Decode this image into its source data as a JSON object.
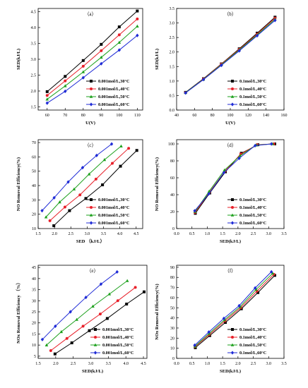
{
  "chart_data": [
    {
      "type": "line",
      "panel_label": "（a）",
      "xlabel": "U(V)",
      "ylabel": "SED(kJ/L)",
      "xlim": [
        55,
        113
      ],
      "ylim": [
        1.4,
        4.6
      ],
      "xticks": [
        "60",
        "70",
        "80",
        "90",
        "100",
        "110"
      ],
      "yticks": [
        "1.5",
        "2.0",
        "2.5",
        "3.0",
        "3.5",
        "4.0",
        "4.5"
      ],
      "legend": "bottom-right",
      "x": [
        60,
        70,
        80,
        90,
        100,
        110
      ],
      "series": [
        {
          "name": "0.001mol/L,30°C",
          "color": "#000000",
          "marker": "square",
          "values": [
            1.98,
            2.46,
            2.96,
            3.47,
            4.02,
            4.52
          ]
        },
        {
          "name": "0.001mol/L,40°C",
          "color": "#e8202a",
          "marker": "circle",
          "values": [
            1.86,
            2.32,
            2.78,
            3.27,
            3.77,
            4.27
          ]
        },
        {
          "name": "0.001mol/L,50°C",
          "color": "#1ca01c",
          "marker": "triangle",
          "values": [
            1.74,
            2.16,
            2.6,
            3.06,
            3.53,
            4.04
          ]
        },
        {
          "name": "0.001mol/L,60°C",
          "color": "#1f2bd6",
          "marker": "diamond",
          "values": [
            1.62,
            1.99,
            2.42,
            2.86,
            3.29,
            3.75
          ]
        }
      ]
    },
    {
      "type": "line",
      "panel_label": "（b）",
      "xlabel": "U(V)",
      "ylabel": "SED(kJ/L)",
      "xlim": [
        40,
        160
      ],
      "ylim": [
        0,
        3.5
      ],
      "xticks": [
        "40",
        "60",
        "80",
        "100",
        "120",
        "140",
        "160"
      ],
      "yticks": [
        "0.0",
        "0.5",
        "1.0",
        "1.5",
        "2.0",
        "2.5",
        "3.0",
        "3.5"
      ],
      "legend": "bottom-right",
      "x": [
        50,
        70,
        90,
        110,
        130,
        150
      ],
      "series": [
        {
          "name": "0.1mol/L,30°C",
          "color": "#000000",
          "marker": "square",
          "values": [
            0.61,
            1.08,
            1.59,
            2.11,
            2.65,
            3.2
          ]
        },
        {
          "name": "0.1mol/L,40°C",
          "color": "#e8202a",
          "marker": "circle",
          "values": [
            0.6,
            1.07,
            1.58,
            2.09,
            2.62,
            3.17
          ]
        },
        {
          "name": "0.1mol/L,50°C",
          "color": "#1ca01c",
          "marker": "triangle",
          "values": [
            0.6,
            1.06,
            1.56,
            2.07,
            2.59,
            3.13
          ]
        },
        {
          "name": "0.1mol/L,60°C",
          "color": "#1f2bd6",
          "marker": "diamond",
          "values": [
            0.59,
            1.05,
            1.54,
            2.04,
            2.56,
            3.09
          ]
        }
      ]
    },
    {
      "type": "line",
      "panel_label": "（c）",
      "xlabel": "SED （kJ/L）",
      "ylabel": "NO Removal Efficiency(%)",
      "xlim": [
        1.5,
        4.7
      ],
      "ylim": [
        10,
        72
      ],
      "xticks": [
        "1.5",
        "2.0",
        "2.5",
        "3.0",
        "3.5",
        "4.0",
        "4.5"
      ],
      "yticks": [
        "10",
        "20",
        "30",
        "40",
        "50",
        "60",
        "70"
      ],
      "legend": "bottom-right",
      "series": [
        {
          "name": "0.001mol/L,30°C",
          "color": "#000000",
          "marker": "square",
          "x": [
            1.98,
            2.46,
            2.96,
            3.47,
            4.02,
            4.52
          ],
          "values": [
            12,
            22.5,
            31,
            40.5,
            53.5,
            64.5
          ]
        },
        {
          "name": "0.001mol/L,40°C",
          "color": "#e8202a",
          "marker": "circle",
          "x": [
            1.86,
            2.32,
            2.78,
            3.27,
            3.77,
            4.27
          ],
          "values": [
            15.5,
            25,
            33.5,
            44.5,
            55.5,
            66
          ]
        },
        {
          "name": "0.001mol/L,50°C",
          "color": "#1ca01c",
          "marker": "triangle",
          "x": [
            1.74,
            2.16,
            2.6,
            3.06,
            3.53,
            4.04
          ],
          "values": [
            18,
            28.5,
            37.5,
            48,
            58,
            67.5
          ]
        },
        {
          "name": "0.001mol/L,60°C",
          "color": "#1f2bd6",
          "marker": "diamond",
          "x": [
            1.62,
            1.99,
            2.42,
            2.86,
            3.29,
            3.75
          ],
          "values": [
            22.5,
            31.5,
            42.5,
            52.5,
            61,
            69
          ]
        }
      ]
    },
    {
      "type": "line",
      "panel_label": "（d）",
      "xlabel": "SED(kJ/L)",
      "ylabel": "NO Removal Efficiency(%)",
      "xlim": [
        0,
        3.5
      ],
      "ylim": [
        0,
        105
      ],
      "xticks": [
        "0.0",
        "0.5",
        "1.0",
        "1.5",
        "2.0",
        "2.5",
        "3.0",
        "3.5"
      ],
      "yticks": [
        "0",
        "20",
        "40",
        "60",
        "80",
        "100"
      ],
      "legend": "bottom-right",
      "series": [
        {
          "name": "0.1mol/L,30°C",
          "color": "#000000",
          "marker": "square",
          "x": [
            0.61,
            1.08,
            1.59,
            2.11,
            2.65,
            3.2
          ],
          "values": [
            18,
            42,
            67,
            89,
            99,
            100
          ]
        },
        {
          "name": "0.1mol/L,40°C",
          "color": "#e8202a",
          "marker": "circle",
          "x": [
            0.6,
            1.07,
            1.58,
            2.09,
            2.62,
            3.17
          ],
          "values": [
            19,
            43,
            68,
            88,
            99,
            100
          ]
        },
        {
          "name": "0.1mol/L,50°C",
          "color": "#1ca01c",
          "marker": "triangle",
          "x": [
            0.6,
            1.06,
            1.56,
            2.07,
            2.59,
            3.13
          ],
          "values": [
            20,
            44,
            69,
            86,
            98.5,
            100
          ]
        },
        {
          "name": "0.1mol/L,60°C",
          "color": "#1f2bd6",
          "marker": "diamond",
          "x": [
            0.59,
            1.05,
            1.54,
            2.04,
            2.56,
            3.09
          ],
          "values": [
            21,
            41,
            66,
            83,
            98,
            100
          ]
        }
      ]
    },
    {
      "type": "line",
      "panel_label": "（e）",
      "xlabel": "SED(kJ/L)",
      "ylabel": "NOx Removal Efficiency （%）",
      "xlim": [
        1.5,
        4.6
      ],
      "ylim": [
        4,
        46
      ],
      "xticks": [
        "1.5",
        "2.0",
        "2.5",
        "3.0",
        "3.5",
        "4.0",
        "4.5"
      ],
      "yticks": [
        "5",
        "10",
        "15",
        "20",
        "25",
        "30",
        "35",
        "40",
        "45"
      ],
      "legend": "bottom-right",
      "series": [
        {
          "name": "0.001mol/L,30°C",
          "color": "#000000",
          "marker": "square",
          "x": [
            1.98,
            2.46,
            2.96,
            3.47,
            4.02,
            4.52
          ],
          "values": [
            6,
            11,
            16.5,
            22,
            28.5,
            34
          ]
        },
        {
          "name": "0.001mol/L,40°C",
          "color": "#e8202a",
          "marker": "circle",
          "x": [
            1.86,
            2.32,
            2.78,
            3.27,
            3.77,
            4.27
          ],
          "values": [
            7.5,
            13,
            18.5,
            24,
            30,
            36
          ]
        },
        {
          "name": "0.001mol/L,50°C",
          "color": "#1ca01c",
          "marker": "triangle",
          "x": [
            1.74,
            2.16,
            2.6,
            3.06,
            3.53,
            4.04
          ],
          "values": [
            10,
            16,
            21.5,
            27.5,
            33,
            39
          ]
        },
        {
          "name": "0.001mol/L,60°C",
          "color": "#1f2bd6",
          "marker": "diamond",
          "x": [
            1.62,
            1.99,
            2.42,
            2.86,
            3.29,
            3.75
          ],
          "values": [
            12.5,
            18.5,
            25,
            31.5,
            37.5,
            43
          ]
        }
      ]
    },
    {
      "type": "line",
      "panel_label": "（f）",
      "xlabel": "SED(kJ/L)",
      "ylabel": "NOx Removal Efficiency(%)",
      "xlim": [
        0,
        3.5
      ],
      "ylim": [
        0,
        92
      ],
      "xticks": [
        "0.0",
        "0.5",
        "1.0",
        "1.5",
        "2.0",
        "2.5",
        "3.0",
        "3.5"
      ],
      "yticks": [
        "0",
        "10",
        "20",
        "30",
        "40",
        "50",
        "60",
        "70",
        "80",
        "90"
      ],
      "legend": "bottom-right",
      "series": [
        {
          "name": "0.1mol/L,30°C",
          "color": "#000000",
          "marker": "square",
          "x": [
            0.61,
            1.08,
            1.59,
            2.11,
            2.65,
            3.2
          ],
          "values": [
            10.5,
            22.5,
            35.5,
            49,
            65,
            82
          ]
        },
        {
          "name": "0.1mol/L,40°C",
          "color": "#e8202a",
          "marker": "circle",
          "x": [
            0.6,
            1.07,
            1.58,
            2.09,
            2.62,
            3.17
          ],
          "values": [
            11.5,
            23.5,
            37,
            50,
            66.5,
            83
          ]
        },
        {
          "name": "0.1mol/L,50°C",
          "color": "#1ca01c",
          "marker": "triangle",
          "x": [
            0.6,
            1.06,
            1.56,
            2.07,
            2.59,
            3.13
          ],
          "values": [
            12,
            24.5,
            38,
            51,
            68,
            84
          ]
        },
        {
          "name": "0.1mol/L,60°C",
          "color": "#1f2bd6",
          "marker": "diamond",
          "x": [
            0.59,
            1.05,
            1.54,
            2.04,
            2.56,
            3.09
          ],
          "values": [
            13,
            26,
            39.5,
            52,
            69.5,
            85.5
          ]
        }
      ]
    }
  ]
}
